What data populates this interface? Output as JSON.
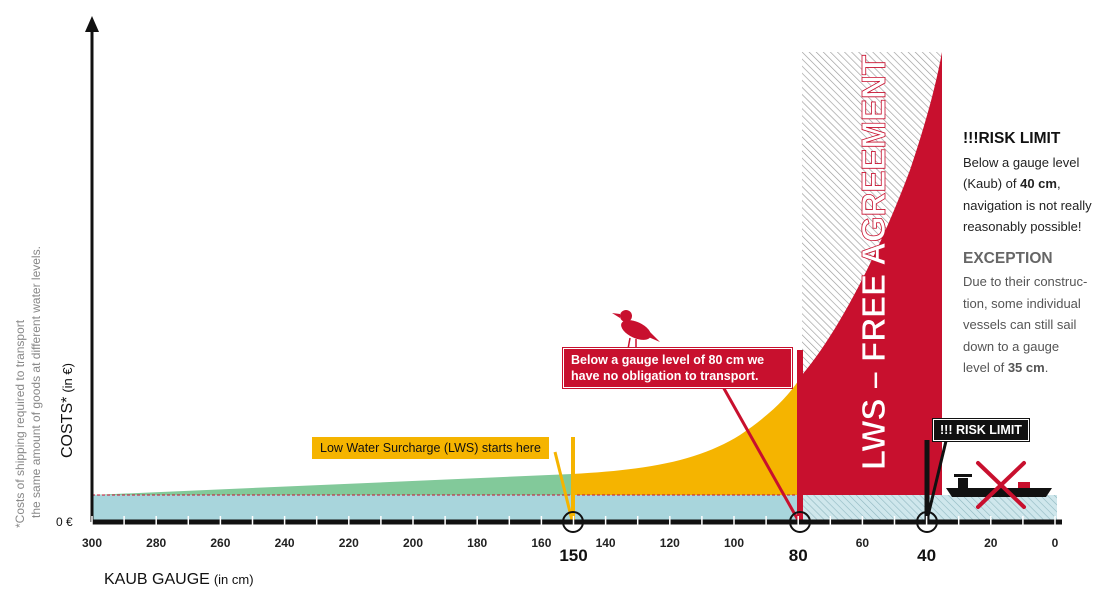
{
  "chart_data": {
    "type": "area",
    "xlabel": "KAUB GAUGE",
    "xlabel_unit": "(in cm)",
    "ylabel": "COSTS*",
    "ylabel_unit": "(in €)",
    "y_zero_label": "0 €",
    "footnote_line1": "*Costs of shipping required to transport",
    "footnote_line2": "the same amount of goods at different water levels.",
    "x_range": [
      300,
      0
    ],
    "x_ticks": [
      300,
      280,
      260,
      240,
      220,
      200,
      180,
      160,
      140,
      120,
      100,
      60,
      20,
      0
    ],
    "x_highlight_ticks": [
      150,
      80,
      40
    ],
    "base_cost_band": "constant base shipping cost",
    "series": [
      {
        "name": "Low Water Surcharge (LWS)",
        "x": [
          300,
          150,
          120,
          100,
          90,
          80
        ],
        "y": [
          0,
          1,
          1.5,
          3,
          4.5,
          7
        ],
        "color": "#f5b400"
      },
      {
        "name": "LWS – FREE AGREEMENT",
        "x": [
          80,
          70,
          60,
          50,
          40,
          35
        ],
        "y": [
          7,
          11,
          16,
          24,
          38,
          48
        ],
        "color": "#c8102e"
      }
    ],
    "hatched_zone": {
      "x_from": 80,
      "x_to": 35,
      "label": "LWS – FREE AGREEMENT"
    },
    "annotations": {
      "lws_start": "Low Water Surcharge (LWS) starts here",
      "no_obligation": "Below a gauge level of 80 cm we have no obligation to transport.",
      "risk_limit_box": "!!! RISK LIMIT"
    },
    "colors": {
      "base": "#a8d5dc",
      "green": "#82c99a",
      "yellow": "#f5b400",
      "red": "#c8102e",
      "axis": "#111111"
    }
  },
  "side_panel": {
    "risk_title": "!!!RISK LIMIT",
    "risk_text_1": "Below a gauge level",
    "risk_text_2": "(Kaub) of",
    "risk_value": "40 cm",
    "risk_text_3": "navigation is not really",
    "risk_text_4": "reasonably possible!",
    "exception_title": "EXCEPTION",
    "exception_text_1": "Due to their construc-",
    "exception_text_2": "tion, some individual",
    "exception_text_3": "vessels can still sail",
    "exception_text_4": "down to a gauge",
    "exception_text_5": "level of",
    "exception_value": "35 cm",
    "exception_period": "."
  },
  "icons": {
    "bird": "seagull-icon",
    "ship": "barge-icon",
    "cross": "cross-icon"
  }
}
